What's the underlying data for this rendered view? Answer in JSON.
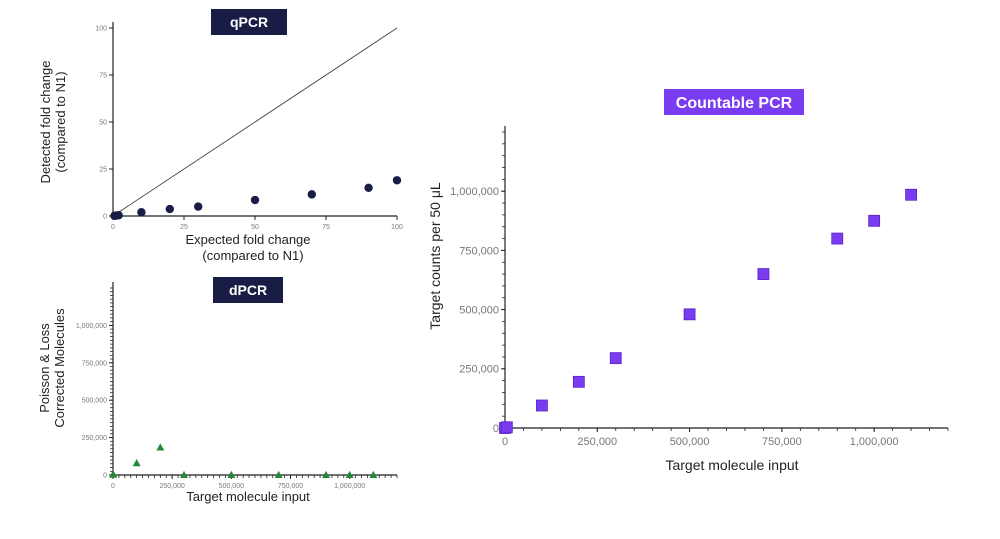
{
  "colors": {
    "qpcr_badge": "#191c44",
    "qpcr_point": "#191c44",
    "dpcr_badge": "#191c44",
    "dpcr_point": "#238a3a",
    "countable_badge": "#7a3cf0",
    "countable_point": "#7a3cf0",
    "axis": "#222222",
    "identity_line": "#444444"
  },
  "chart_data": [
    {
      "id": "qpcr",
      "type": "scatter",
      "title": "qPCR",
      "xlabel": [
        "Expected fold change",
        "(compared to N1)"
      ],
      "ylabel": [
        "Detected fold change",
        "(compared to N1)"
      ],
      "xlim": [
        0,
        100
      ],
      "ylim": [
        0,
        100
      ],
      "xticks": [
        0,
        25,
        50,
        75,
        100
      ],
      "xtick_labels": [
        "0",
        "25",
        "50",
        "75",
        "100"
      ],
      "yticks": [
        0,
        25,
        50,
        75,
        100
      ],
      "ytick_labels": [
        "0",
        "25",
        "50",
        "75",
        "100"
      ],
      "reference_line": {
        "from": [
          0,
          0
        ],
        "to": [
          100,
          100
        ]
      },
      "marker": "circle",
      "x": [
        0.5,
        1,
        2,
        10,
        20,
        30,
        50,
        70,
        90,
        100
      ],
      "y": [
        0.1,
        0.2,
        0.4,
        2,
        3.7,
        5,
        8.5,
        11.5,
        15,
        19
      ]
    },
    {
      "id": "dpcr",
      "type": "scatter",
      "title": "dPCR",
      "xlabel": [
        "Target molecule input"
      ],
      "ylabel": [
        "Poisson & Loss",
        "Corrected Molecules"
      ],
      "xlim": [
        0,
        1200000
      ],
      "ylim": [
        0,
        1250000
      ],
      "xticks": [
        0,
        250000,
        500000,
        750000,
        1000000
      ],
      "xtick_labels": [
        "0",
        "250,000",
        "500,000",
        "750,000",
        "1,000,000"
      ],
      "yticks": [
        0,
        250000,
        500000,
        750000,
        1000000
      ],
      "ytick_labels": [
        "0",
        "250,000",
        "500,000",
        "750,000",
        "1,000,000"
      ],
      "marker": "triangle",
      "x": [
        0,
        1000,
        100000,
        200000,
        300000,
        500000,
        700000,
        900000,
        1000000,
        1100000
      ],
      "y": [
        3000,
        5000,
        80000,
        185000,
        1000,
        1000,
        1000,
        1000,
        1000,
        1000
      ]
    },
    {
      "id": "countable",
      "type": "scatter",
      "title": "Countable PCR",
      "xlabel": [
        "Target molecule input"
      ],
      "ylabel": [
        "Target counts per 50 μL"
      ],
      "xlim": [
        0,
        1200000
      ],
      "ylim": [
        0,
        1250000
      ],
      "xticks": [
        0,
        250000,
        500000,
        750000,
        1000000
      ],
      "xtick_labels": [
        "0",
        "250,000",
        "500,000",
        "750,000",
        "1,000,000"
      ],
      "yticks": [
        0,
        250000,
        500000,
        750000,
        1000000
      ],
      "ytick_labels": [
        "0",
        "250,000",
        "500,000",
        "750,000",
        "1,000,000"
      ],
      "marker": "square",
      "x": [
        0,
        5000,
        100000,
        200000,
        300000,
        500000,
        700000,
        900000,
        1000000,
        1100000
      ],
      "y": [
        0,
        3000,
        95000,
        195000,
        295000,
        480000,
        650000,
        800000,
        875000,
        985000
      ]
    }
  ]
}
